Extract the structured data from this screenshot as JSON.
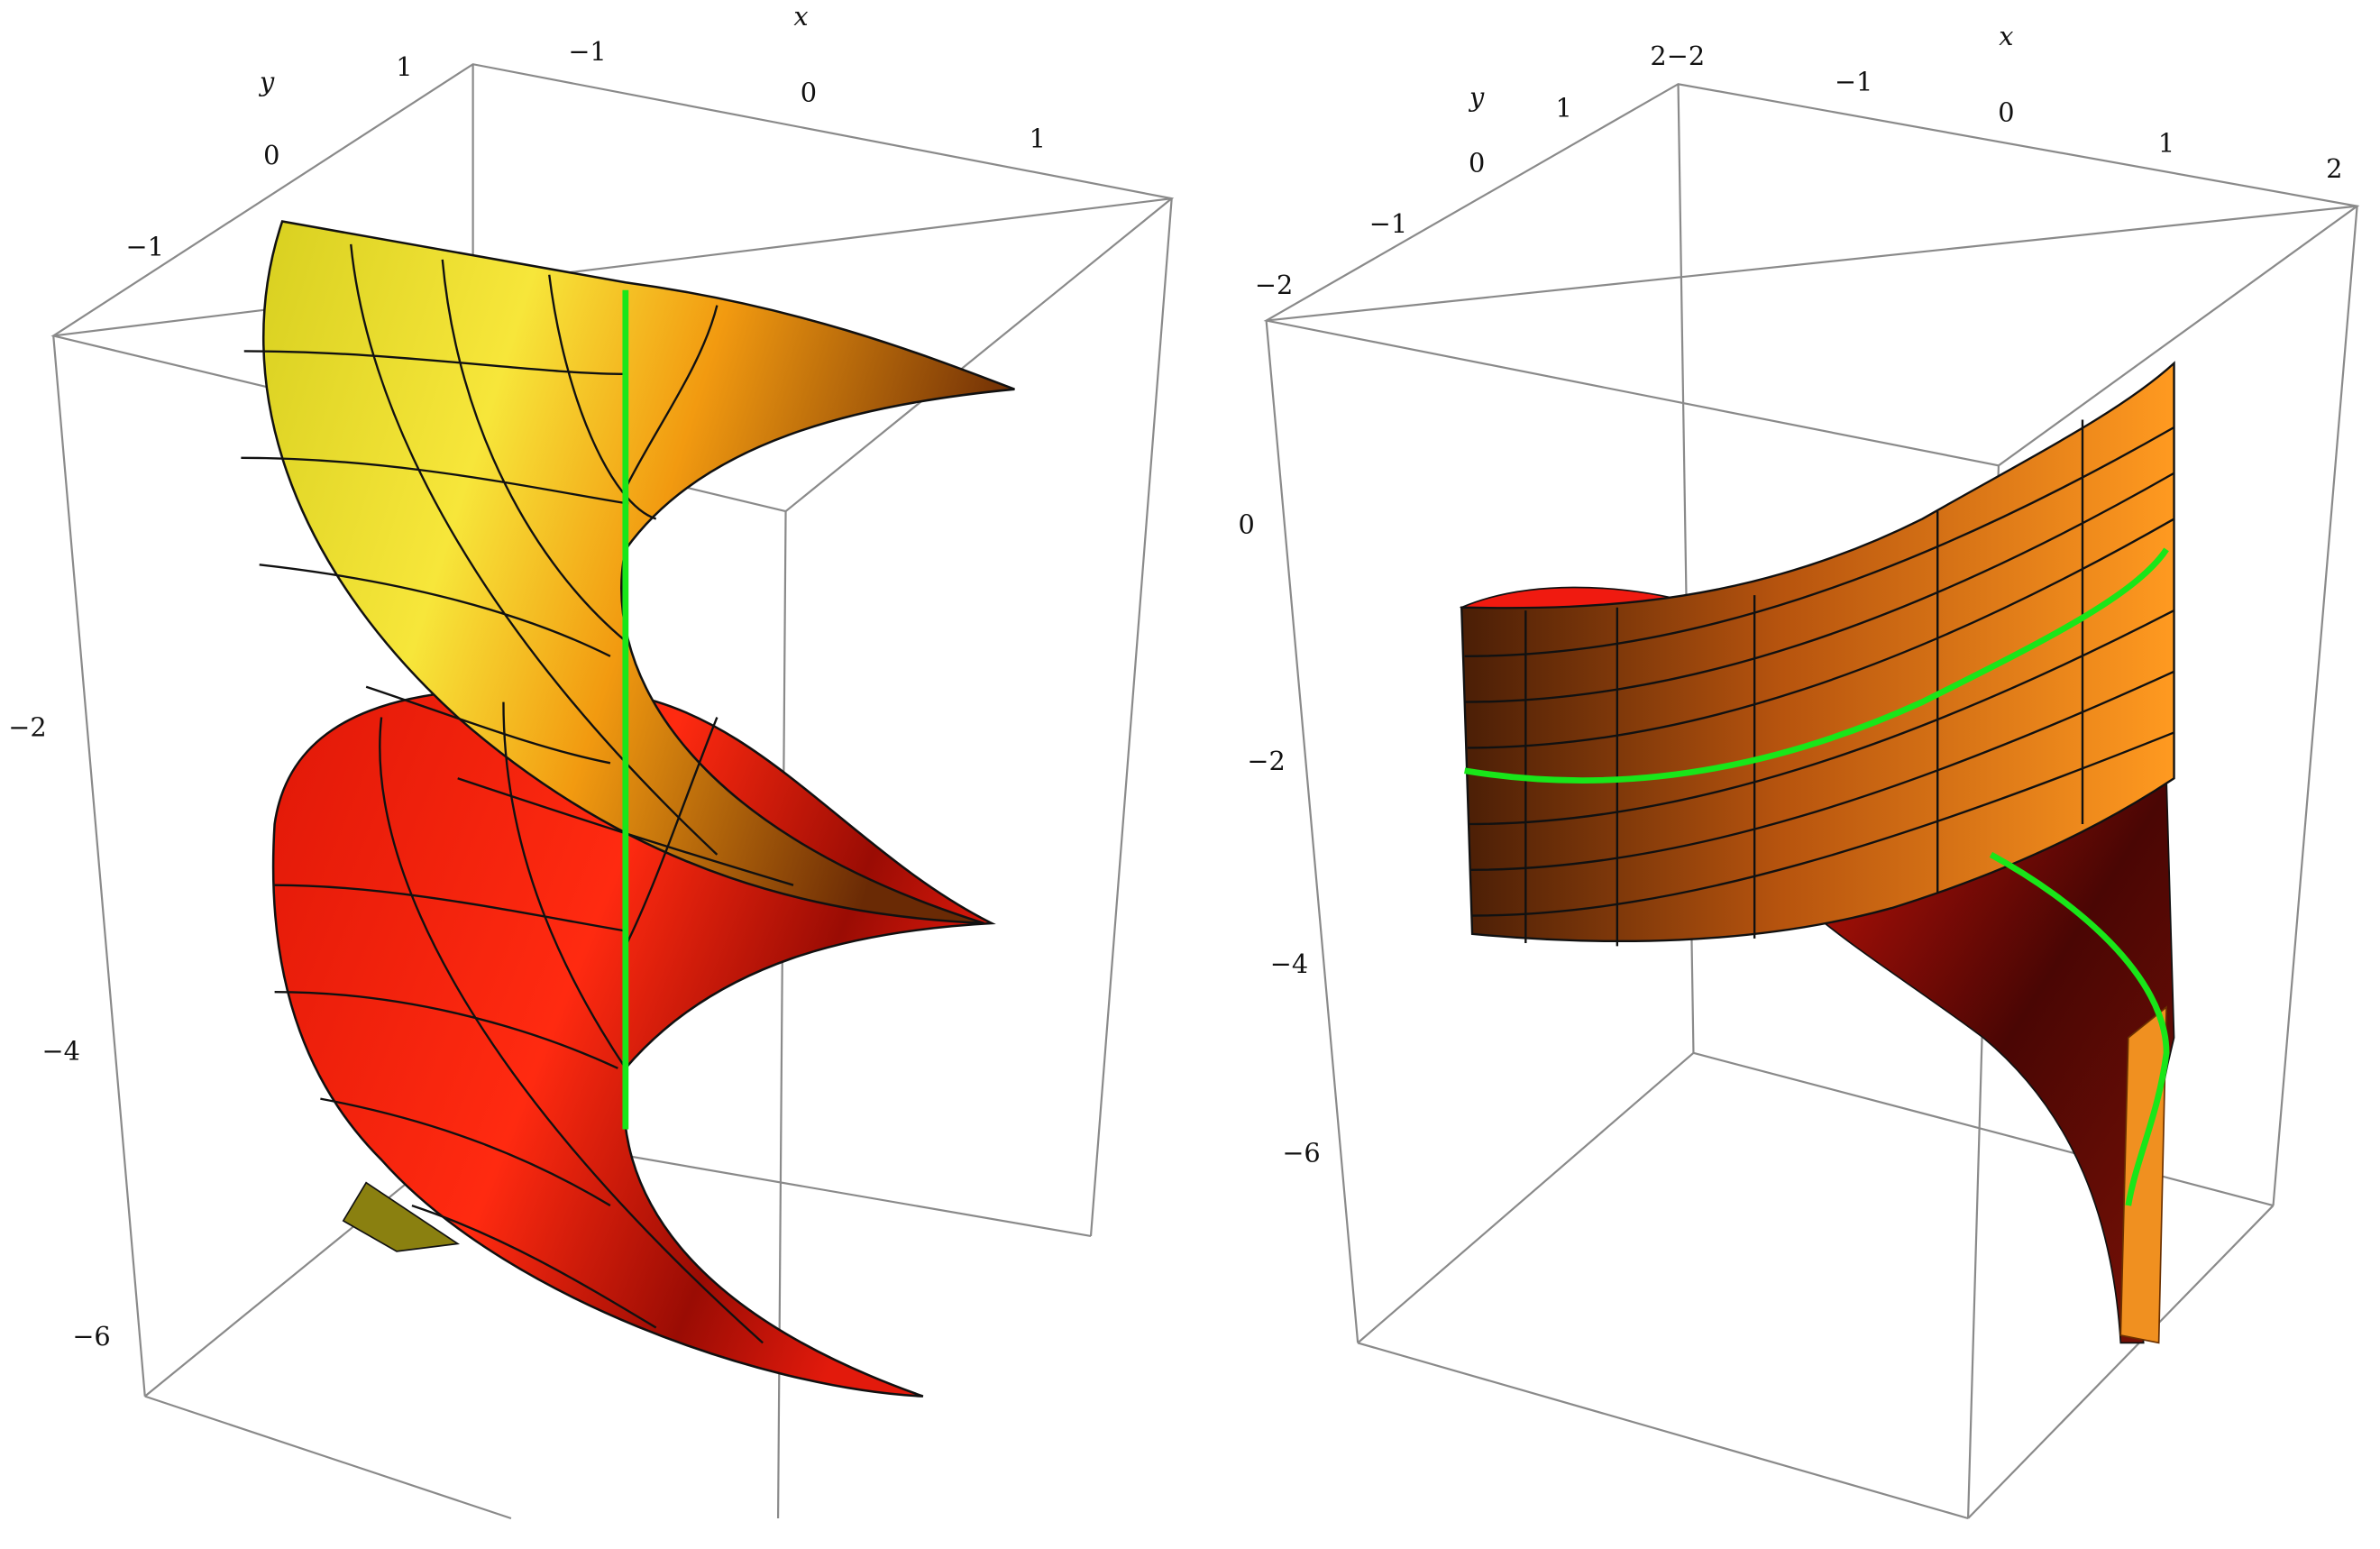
{
  "plots": [
    {
      "x_label": "x",
      "y_label": "y",
      "x_ticks": [
        "−1",
        "0",
        "1"
      ],
      "y_ticks": [
        "1",
        "0",
        "−1"
      ],
      "z_ticks": [
        "−2",
        "−4",
        "−6"
      ]
    },
    {
      "x_label": "x",
      "y_label": "y",
      "x_ticks": [
        "−2",
        "−1",
        "0",
        "1",
        "2"
      ],
      "y_ticks": [
        "2",
        "1",
        "0",
        "−1",
        "−2"
      ],
      "z_ticks": [
        "0",
        "−2",
        "−4",
        "−6"
      ]
    }
  ]
}
